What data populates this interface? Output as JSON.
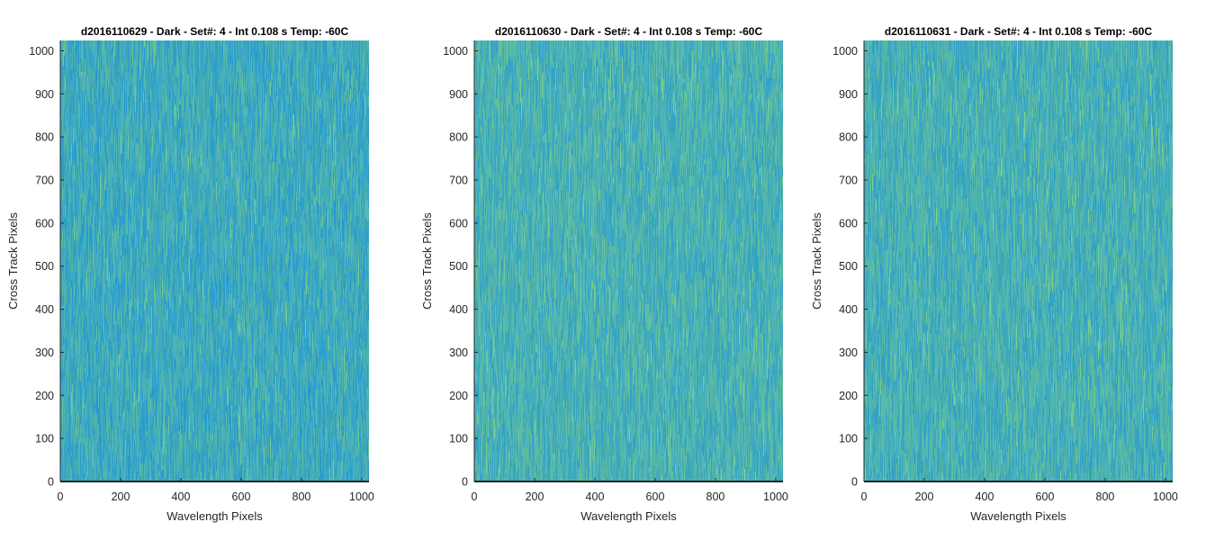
{
  "figure": {
    "colors": {
      "map_base": "#22a3c7",
      "map_low": "#1e95d6",
      "map_high": "#7ccf8e",
      "axis": "#262626"
    }
  },
  "chart_data": [
    {
      "type": "heatmap",
      "title": "d2016110629 - Dark - Set#: 4 - Int 0.108 s Temp: -60C",
      "xlabel": "Wavelength Pixels",
      "ylabel": "Cross Track Pixels",
      "xlim": [
        0,
        1024
      ],
      "ylim": [
        0,
        1024
      ],
      "xticks": [
        0,
        200,
        400,
        600,
        800,
        1000
      ],
      "yticks": [
        0,
        100,
        200,
        300,
        400,
        500,
        600,
        700,
        800,
        900,
        1000
      ],
      "colormap": "parula",
      "grid": false
    },
    {
      "type": "heatmap",
      "title": "d2016110630 - Dark - Set#: 4 - Int 0.108 s Temp: -60C",
      "xlabel": "Wavelength Pixels",
      "ylabel": "Cross Track Pixels",
      "xlim": [
        0,
        1024
      ],
      "ylim": [
        0,
        1024
      ],
      "xticks": [
        0,
        200,
        400,
        600,
        800,
        1000
      ],
      "yticks": [
        0,
        100,
        200,
        300,
        400,
        500,
        600,
        700,
        800,
        900,
        1000
      ],
      "colormap": "parula",
      "grid": false
    },
    {
      "type": "heatmap",
      "title": "d2016110631 - Dark - Set#: 4 - Int 0.108 s Temp: -60C",
      "xlabel": "Wavelength Pixels",
      "ylabel": "Cross Track Pixels",
      "xlim": [
        0,
        1024
      ],
      "ylim": [
        0,
        1024
      ],
      "xticks": [
        0,
        200,
        400,
        600,
        800,
        1000
      ],
      "yticks": [
        0,
        100,
        200,
        300,
        400,
        500,
        600,
        700,
        800,
        900,
        1000
      ],
      "colormap": "parula",
      "grid": false
    }
  ]
}
